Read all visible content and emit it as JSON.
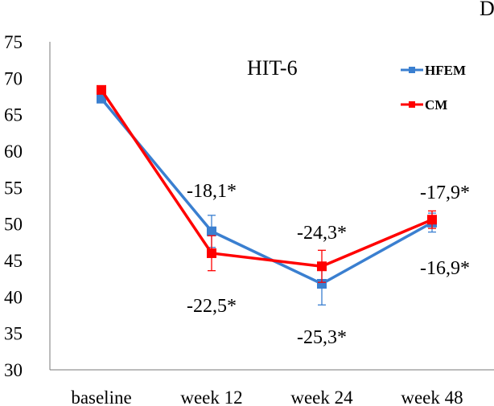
{
  "chart_data": {
    "type": "line",
    "title": "HIT-6",
    "panel_label": "D",
    "categories": [
      "baseline",
      "week 12",
      "week 24",
      "week 48"
    ],
    "ylim": [
      30,
      75
    ],
    "yticks": [
      30,
      35,
      40,
      45,
      50,
      55,
      60,
      65,
      70,
      75
    ],
    "legend_position": "top-right",
    "series": [
      {
        "name": "HFEM",
        "color": "#3a7fd0",
        "values": [
          67.2,
          49.0,
          41.8,
          50.2
        ],
        "errors": [
          0,
          2.2,
          2.9,
          1.3
        ],
        "labels": [
          "",
          "-18,1*",
          "-25,3*",
          "-16,9*"
        ]
      },
      {
        "name": "CM",
        "color": "#ff0000",
        "values": [
          68.4,
          46.0,
          44.2,
          50.6
        ],
        "errors": [
          0,
          2.4,
          2.2,
          1.2
        ],
        "labels": [
          "",
          "-22,5*",
          "-24,3*",
          "-17,9*"
        ]
      }
    ]
  }
}
